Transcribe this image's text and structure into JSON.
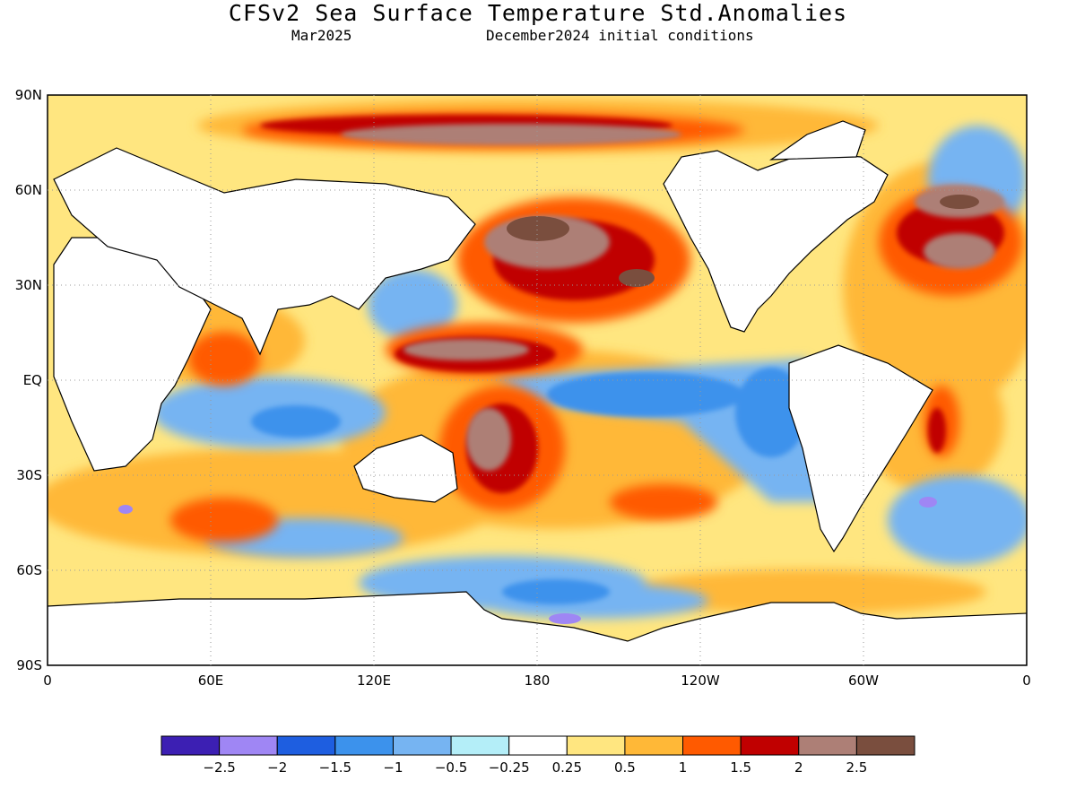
{
  "title": "CFSv2 Sea Surface Temperature Std.Anomalies",
  "valid_month": "Mar2025",
  "init_conditions": "December2024 initial conditions",
  "lat_labels": [
    "90N",
    "60N",
    "30N",
    "EQ",
    "30S",
    "60S",
    "90S"
  ],
  "lon_labels": [
    "0",
    "60E",
    "120E",
    "180",
    "120W",
    "60W",
    "0"
  ],
  "colorbar": {
    "colors": [
      "#3c1fb3",
      "#9f86f4",
      "#1e5ee0",
      "#3c92ec",
      "#76b4f2",
      "#b4eef8",
      "#ffffff",
      "#ffe680",
      "#ffb837",
      "#ff5a00",
      "#c00000",
      "#ad7f76",
      "#7a4e3e"
    ],
    "labels": [
      "-2.5",
      "-2",
      "-1.5",
      "-1",
      "-0.5",
      "-0.25",
      "0.25",
      "0.5",
      "1",
      "1.5",
      "2",
      "2.5"
    ]
  },
  "land_color": "#ffffff",
  "gridline_color": "#999999"
}
